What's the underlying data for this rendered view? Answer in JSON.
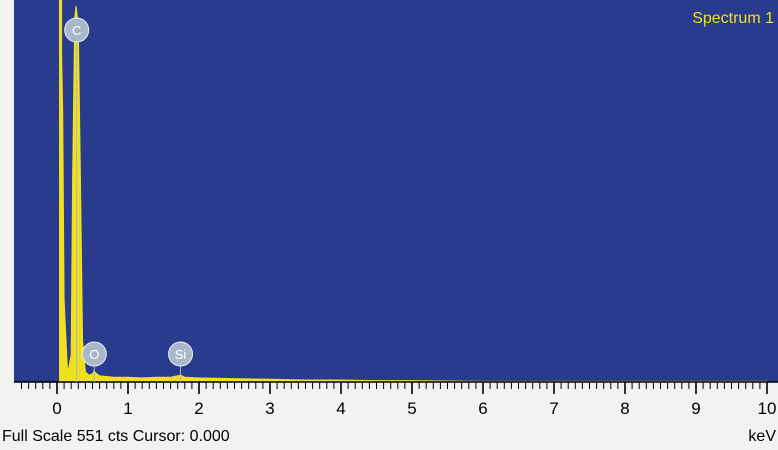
{
  "chart_data": {
    "type": "area",
    "title": "",
    "legend": "Spectrum 1",
    "legend_position": "top-right",
    "xlabel": "keV",
    "xlim": [
      -0.6,
      10
    ],
    "ylim": [
      0,
      551
    ],
    "x_ticks": [
      0,
      1,
      2,
      3,
      4,
      5,
      6,
      7,
      8,
      9,
      10
    ],
    "grid": false,
    "series": [
      {
        "x": [
          0.05,
          0.08,
          0.1,
          0.15,
          0.2,
          0.22,
          0.25,
          0.27,
          0.3,
          0.33,
          0.36,
          0.4,
          0.45,
          0.5,
          0.52,
          0.55,
          0.6,
          0.7,
          0.8,
          1.0,
          1.2,
          1.4,
          1.6,
          1.74,
          1.8,
          2.0,
          2.5,
          3.0,
          3.5,
          4.0,
          4.5,
          5.0,
          6.0,
          7.0,
          8.0,
          9.0,
          10.0
        ],
        "y": [
          551,
          400,
          120,
          12,
          40,
          300,
          535,
          551,
          520,
          300,
          60,
          15,
          10,
          12,
          16,
          13,
          9,
          8,
          7,
          7,
          6,
          7,
          7,
          10,
          7,
          6,
          5,
          4,
          3,
          3,
          2,
          2,
          1,
          1,
          1,
          1,
          1
        ]
      }
    ],
    "peak_labels": [
      {
        "label": "C",
        "energy": 0.277
      },
      {
        "label": "O",
        "energy": 0.525
      },
      {
        "label": "Si",
        "energy": 1.74
      }
    ],
    "colors": {
      "plot_background": "#283b8c",
      "trace": "#f0e020",
      "marker": "#a9b8c8"
    }
  },
  "status": {
    "full_scale_text": "Full Scale 551 cts Cursor: 0.000",
    "unit": "keV"
  }
}
